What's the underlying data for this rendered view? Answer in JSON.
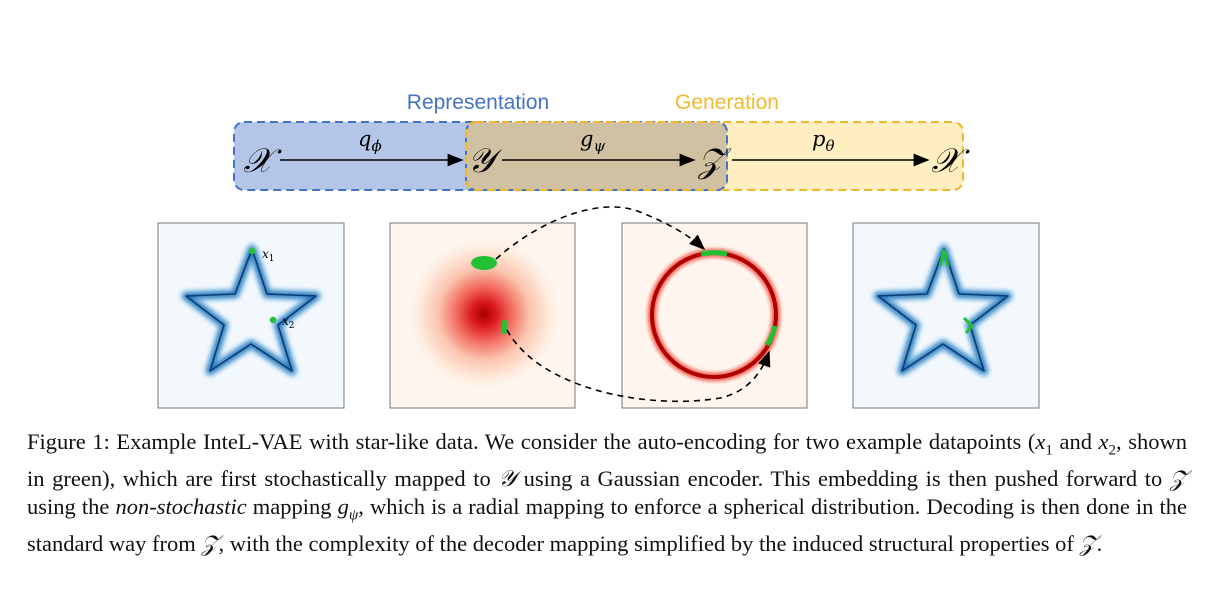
{
  "diagram": {
    "label_representation": "Representation",
    "label_generation": "Generation",
    "nodes": [
      "𝒳",
      "𝒴",
      "𝒵",
      "𝒳"
    ],
    "maps": {
      "q_base": "q",
      "q_sub": "ϕ",
      "g_base": "g",
      "g_sub": "ψ",
      "p_base": "p",
      "p_sub": "θ"
    },
    "x1_base": "x",
    "x1_sub": "1",
    "x2_base": "x",
    "x2_sub": "2",
    "colors": {
      "representation": "#4472c4",
      "generation": "#f2b92f",
      "star": "#1f6fb4",
      "density": "#c00000",
      "points": "#22c133"
    }
  },
  "caption": {
    "prefix": "Figure 1: Example InteL-VAE with star-like data. We consider the auto-encoding for two example datapoints (",
    "x1": "x",
    "x1_sub": "1",
    "and": " and ",
    "x2": "x",
    "x2_sub": "2",
    "part2": ", shown in green), which are first stochastically mapped to ",
    "Y": "𝒴",
    "part3": " using a Gaussian encoder. This embedding is then pushed forward to ",
    "Z": "𝒵",
    "part4": " using the ",
    "nonstochastic": "non-stochastic",
    "part5": " mapping ",
    "g": "g",
    "g_sub": "ψ",
    "part6": ", which is a radial mapping to enforce a spherical distribution. Decoding is then done in the standard way from ",
    "Z2": "𝒵",
    "part7": ", with the complexity of the decoder mapping simplified by the induced structural properties of ",
    "Z3": "𝒵",
    "end": "."
  }
}
